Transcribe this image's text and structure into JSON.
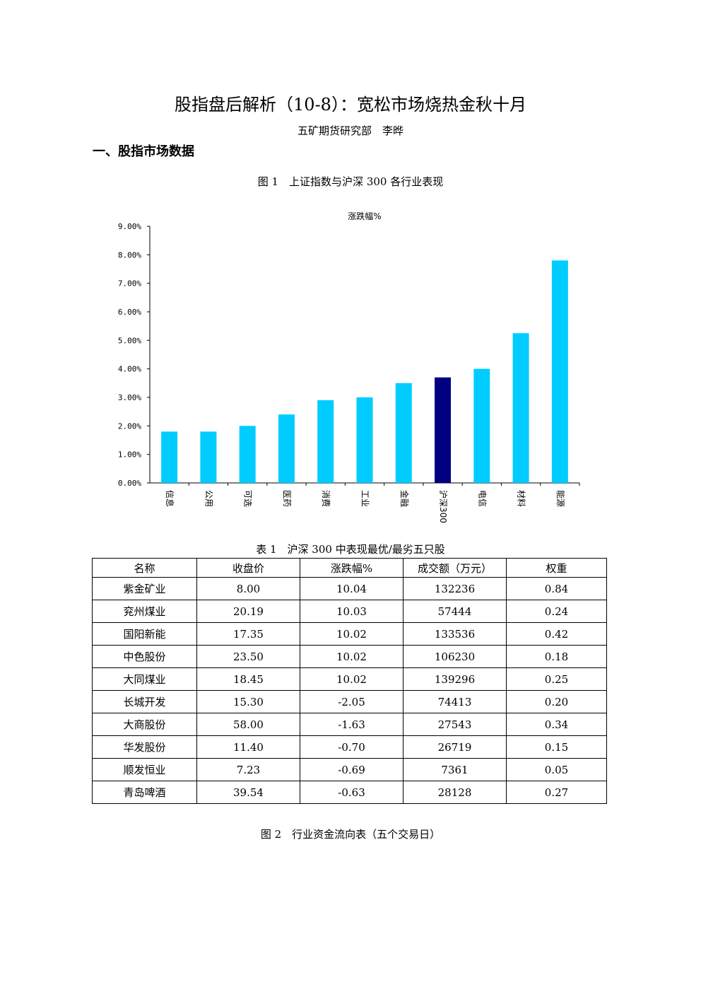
{
  "document": {
    "title": "股指盘后解析（10-8）：宽松市场烧热金秋十月",
    "author": "五矿期货研究部　李晔",
    "section_heading": "一、股指市场数据",
    "figure1_caption": "图 1　上证指数与沪深 300 各行业表现",
    "table1_caption": "表 1　沪深 300 中表现最优/最劣五只股",
    "figure2_caption": "图 2　行业资金流向表（五个交易日）"
  },
  "colors": {
    "bar": "#00ccff",
    "highlight_bar": "#000080",
    "axis": "#000000"
  },
  "chart_data": {
    "type": "bar",
    "title": "涨跌幅%",
    "categories": [
      "信息",
      "公用",
      "可选",
      "医药",
      "消费",
      "工业",
      "金融",
      "沪深300",
      "电信",
      "材料",
      "能源"
    ],
    "values": [
      1.8,
      1.8,
      2.0,
      2.4,
      2.9,
      3.0,
      3.5,
      3.7,
      4.0,
      5.25,
      7.8
    ],
    "highlight": "沪深300",
    "ylim": [
      0,
      9
    ],
    "yticks": [
      "0.00%",
      "1.00%",
      "2.00%",
      "3.00%",
      "4.00%",
      "5.00%",
      "6.00%",
      "7.00%",
      "8.00%",
      "9.00%"
    ],
    "grid": false,
    "legend": "none"
  },
  "table1": {
    "headers": [
      "名称",
      "收盘价",
      "涨跌幅%",
      "成交额（万元）",
      "权重"
    ],
    "rows": [
      [
        "紫金矿业",
        "8.00",
        "10.04",
        "132236",
        "0.84"
      ],
      [
        "兖州煤业",
        "20.19",
        "10.03",
        "57444",
        "0.24"
      ],
      [
        "国阳新能",
        "17.35",
        "10.02",
        "133536",
        "0.42"
      ],
      [
        "中色股份",
        "23.50",
        "10.02",
        "106230",
        "0.18"
      ],
      [
        "大同煤业",
        "18.45",
        "10.02",
        "139296",
        "0.25"
      ],
      [
        "长城开发",
        "15.30",
        "-2.05",
        "74413",
        "0.20"
      ],
      [
        "大商股份",
        "58.00",
        "-1.63",
        "27543",
        "0.34"
      ],
      [
        "华发股份",
        "11.40",
        "-0.70",
        "26719",
        "0.15"
      ],
      [
        "顺发恒业",
        "7.23",
        "-0.69",
        "7361",
        "0.05"
      ],
      [
        "青岛啤酒",
        "39.54",
        "-0.63",
        "28128",
        "0.27"
      ]
    ]
  }
}
